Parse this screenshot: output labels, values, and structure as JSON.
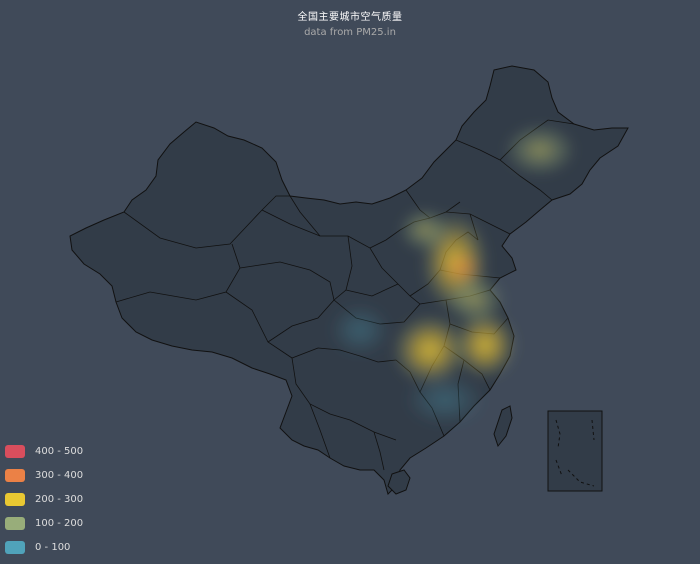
{
  "title": "全国主要城市空气质量",
  "subtitle": "data from PM25.in",
  "colors": {
    "background": "#404a59",
    "land": "#323c48",
    "border": "#111111"
  },
  "legend": [
    {
      "label": "400 - 500",
      "color": "#d94e5d"
    },
    {
      "label": "300 - 400",
      "color": "#eb8146"
    },
    {
      "label": "200 - 300",
      "color": "#e9c832"
    },
    {
      "label": "100 - 200",
      "color": "#98ad7a"
    },
    {
      "label": "0 - 100",
      "color": "#50a3ba"
    }
  ]
}
